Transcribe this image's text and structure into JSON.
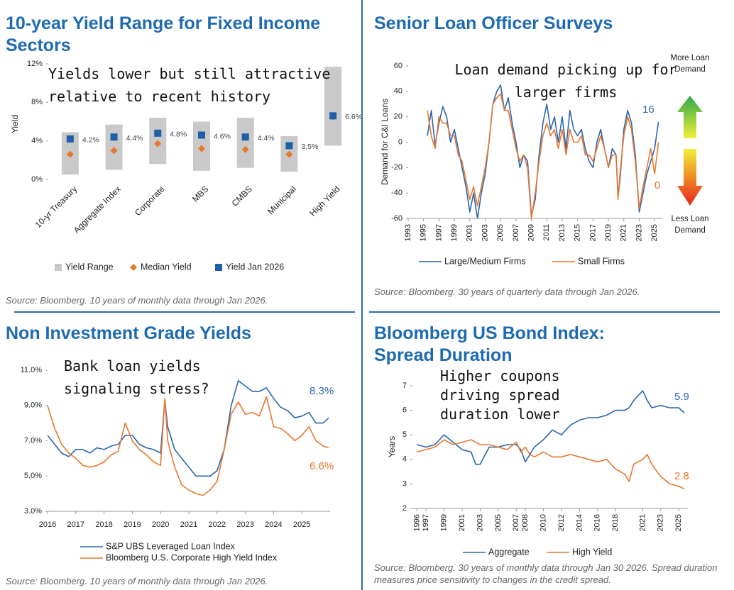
{
  "chart_data": [
    {
      "type": "range",
      "title": "10-year Yield Range for Fixed Income Sectors",
      "annotation": "Yields lower but still attractive relative to recent history",
      "source": "Source: Bloomberg. 10 years of monthly data through Jan 2026.",
      "y_label": "Yield",
      "categories": [
        "10-yr Treasury",
        "Aggregate Index",
        "Corporate",
        "MBS",
        "CMBS",
        "Municipal",
        "High Yield"
      ],
      "series": [
        {
          "name": "Yield Range",
          "color": "#c9c9c9",
          "low": [
            0.5,
            1.0,
            1.6,
            0.9,
            1.2,
            0.8,
            3.5
          ],
          "high": [
            4.9,
            5.7,
            6.4,
            6.0,
            6.4,
            4.5,
            11.7
          ]
        },
        {
          "name": "Median Yield",
          "color": "#e8772e",
          "values": [
            2.6,
            3.0,
            3.7,
            3.2,
            3.1,
            2.6,
            6.5
          ]
        },
        {
          "name": "Yield Jan 2026",
          "color": "#1f5fa8",
          "values": [
            4.2,
            4.4,
            4.8,
            4.6,
            4.4,
            3.5,
            6.6
          ],
          "value_labels": [
            "4.2%",
            "4.4%",
            "4.8%",
            "4.6%",
            "4.4%",
            "3.5%",
            "6.6%"
          ]
        }
      ],
      "ylim": [
        0,
        12
      ],
      "yticks": [
        {
          "value": 0,
          "label": "0%"
        },
        {
          "value": 4,
          "label": "4%"
        },
        {
          "value": 8,
          "label": "8%"
        },
        {
          "value": 12,
          "label": "12%"
        }
      ]
    },
    {
      "type": "line",
      "title": "Senior Loan Officer Surveys",
      "annotation": "Loan demand picking up for larger firms",
      "source": "Source: Bloomberg. 30 years of quarterly data through Jan 2026.",
      "y_label": "Demand for C&I Loans",
      "top_label": "More Loan Demand",
      "bottom_label": "Less Loan Demand",
      "x": [
        1995.5,
        1996,
        1996.5,
        1997,
        1997.5,
        1998,
        1998.5,
        1999,
        1999.5,
        2000,
        2000.5,
        2001,
        2001.5,
        2002,
        2002.5,
        2003,
        2003.5,
        2004,
        2004.5,
        2005,
        2005.5,
        2006,
        2006.5,
        2007,
        2007.5,
        2008,
        2008.5,
        2009,
        2009.5,
        2010,
        2010.5,
        2011,
        2011.5,
        2012,
        2012.5,
        2013,
        2013.5,
        2014,
        2014.5,
        2015,
        2015.5,
        2016,
        2016.5,
        2017,
        2017.5,
        2018,
        2018.5,
        2019,
        2019.5,
        2020,
        2020.25,
        2020.5,
        2021,
        2021.5,
        2022,
        2022.5,
        2023,
        2023.5,
        2024,
        2024.5,
        2025,
        2025.5
      ],
      "series": [
        {
          "name": "Large/Medium Firms",
          "color": "#2a66b0",
          "values": [
            5,
            25,
            -2,
            15,
            28,
            20,
            0,
            10,
            -5,
            -20,
            -35,
            -55,
            -40,
            -60,
            -40,
            -25,
            0,
            30,
            40,
            45,
            25,
            35,
            15,
            0,
            -20,
            -10,
            -15,
            -58,
            -45,
            -10,
            15,
            30,
            10,
            20,
            0,
            20,
            -5,
            25,
            10,
            5,
            10,
            -5,
            -15,
            -20,
            0,
            10,
            -5,
            -20,
            -5,
            -10,
            -43,
            -30,
            10,
            25,
            15,
            -10,
            -55,
            -40,
            -25,
            -15,
            -5,
            16
          ]
        },
        {
          "name": "Small Firms",
          "color": "#e8772e",
          "values": [
            25,
            5,
            -5,
            20,
            15,
            15,
            5,
            5,
            -10,
            -15,
            -30,
            -45,
            -35,
            -50,
            -35,
            -20,
            0,
            30,
            35,
            38,
            25,
            25,
            10,
            -5,
            -15,
            -10,
            -20,
            -60,
            -40,
            -15,
            5,
            15,
            5,
            10,
            -5,
            10,
            -10,
            10,
            0,
            0,
            5,
            -10,
            -10,
            -15,
            -5,
            5,
            -5,
            -20,
            -10,
            -10,
            -45,
            -25,
            5,
            20,
            10,
            -15,
            -52,
            -35,
            -20,
            -5,
            -25,
            0
          ]
        }
      ],
      "xlim": [
        1993,
        2026
      ],
      "xticks": [
        1993,
        1995,
        1997,
        1999,
        2001,
        2003,
        2005,
        2007,
        2009,
        2011,
        2013,
        2015,
        2017,
        2019,
        2021,
        2023,
        2025
      ],
      "ylim": [
        -60,
        60
      ],
      "yticks": [
        -60,
        -40,
        -20,
        0,
        20,
        40,
        60
      ]
    },
    {
      "type": "line",
      "title": "Non Investment Grade Yields",
      "annotation": "Bank loan yields signaling stress?",
      "source": "Source: Bloomberg. 10 years of monthly data through Jan 2026.",
      "x": [
        2016,
        2016.25,
        2016.5,
        2016.75,
        2017,
        2017.25,
        2017.5,
        2017.75,
        2018,
        2018.25,
        2018.5,
        2018.75,
        2019,
        2019.25,
        2019.5,
        2019.75,
        2020,
        2020.15,
        2020.25,
        2020.5,
        2020.75,
        2021,
        2021.25,
        2021.5,
        2021.75,
        2022,
        2022.25,
        2022.5,
        2022.75,
        2023,
        2023.25,
        2023.5,
        2023.75,
        2024,
        2024.25,
        2024.5,
        2024.75,
        2025,
        2025.25,
        2025.5,
        2025.75,
        2025.95
      ],
      "series": [
        {
          "name": "S&P UBS Leveraged Loan Index",
          "color": "#2a66b0",
          "values": [
            7.3,
            6.8,
            6.3,
            6.1,
            6.5,
            6.5,
            6.3,
            6.6,
            6.5,
            6.7,
            6.8,
            7.3,
            7.3,
            6.8,
            6.6,
            6.5,
            6.3,
            9.3,
            7.8,
            6.5,
            6.0,
            5.5,
            5.0,
            5.0,
            5.0,
            5.3,
            6.5,
            9.0,
            10.4,
            10.1,
            9.8,
            9.8,
            10.0,
            9.4,
            8.9,
            8.7,
            8.3,
            8.4,
            8.6,
            8.0,
            8.0,
            8.3
          ],
          "value_labels": [
            null,
            null,
            null,
            null,
            null,
            null,
            null,
            null,
            null,
            null,
            null,
            null,
            null,
            null,
            null,
            null,
            null,
            null,
            null,
            null,
            null,
            null,
            null,
            null,
            null,
            null,
            null,
            null,
            null,
            null,
            null,
            null,
            null,
            null,
            null,
            null,
            null,
            null,
            null,
            null,
            null,
            "8.3%"
          ]
        },
        {
          "name": "Bloomberg U.S. Corporate High Yield Index",
          "color": "#e8772e",
          "values": [
            9.0,
            7.7,
            6.8,
            6.3,
            6.0,
            5.6,
            5.5,
            5.6,
            5.8,
            6.2,
            6.4,
            8.0,
            7.0,
            6.5,
            6.2,
            5.8,
            5.6,
            9.4,
            7.0,
            5.5,
            4.5,
            4.2,
            4.0,
            3.9,
            4.2,
            4.7,
            6.5,
            8.5,
            9.2,
            8.5,
            8.6,
            8.4,
            9.5,
            7.8,
            7.7,
            7.4,
            7.0,
            7.3,
            7.8,
            7.0,
            6.7,
            6.6
          ],
          "value_labels": [
            null,
            null,
            null,
            null,
            null,
            null,
            null,
            null,
            null,
            null,
            null,
            null,
            null,
            null,
            null,
            null,
            null,
            null,
            null,
            null,
            null,
            null,
            null,
            null,
            null,
            null,
            null,
            null,
            null,
            null,
            null,
            null,
            null,
            null,
            null,
            null,
            null,
            null,
            null,
            null,
            null,
            "6.6%"
          ]
        }
      ],
      "xlim": [
        2016,
        2026
      ],
      "xticks": [
        2016,
        2017,
        2018,
        2019,
        2020,
        2021,
        2022,
        2023,
        2024,
        2025
      ],
      "ylim": [
        3,
        11
      ],
      "yticks": [
        {
          "value": 3,
          "label": "3.0%"
        },
        {
          "value": 5,
          "label": "5.0%"
        },
        {
          "value": 7,
          "label": "7.0%"
        },
        {
          "value": 9,
          "label": "9.0%"
        },
        {
          "value": 11,
          "label": "11.0%"
        }
      ]
    },
    {
      "type": "line",
      "title": "Bloomberg US Bond Index: Spread Duration",
      "annotation": "Higher coupons driving spread duration lower",
      "source": "Source: Bloomberg. 30 years of monthly data through Jan 30 2026. Spread duration measures price sensitivity to changes in the credit spread.",
      "y_label": "Years",
      "x": [
        1996,
        1997,
        1998,
        1999,
        2000,
        2001,
        2002,
        2002.5,
        2003,
        2004,
        2005,
        2006,
        2007,
        2007.5,
        2008,
        2008.5,
        2009,
        2010,
        2011,
        2012,
        2013,
        2014,
        2015,
        2016,
        2017,
        2018,
        2019,
        2019.5,
        2020,
        2021,
        2021.5,
        2022,
        2023,
        2024,
        2025,
        2025.6
      ],
      "series": [
        {
          "name": "Aggregate",
          "color": "#2a66b0",
          "values": [
            4.6,
            4.5,
            4.6,
            5.0,
            4.7,
            4.4,
            4.3,
            3.8,
            3.8,
            4.5,
            4.5,
            4.6,
            4.6,
            4.4,
            3.9,
            4.2,
            4.5,
            4.8,
            5.2,
            5.0,
            5.4,
            5.6,
            5.7,
            5.7,
            5.8,
            6.0,
            6.0,
            6.1,
            6.4,
            6.8,
            6.4,
            6.1,
            6.2,
            6.1,
            6.1,
            5.9
          ]
        },
        {
          "name": "High Yield",
          "color": "#e8772e",
          "values": [
            4.3,
            4.4,
            4.5,
            4.8,
            4.6,
            4.7,
            4.8,
            4.7,
            4.6,
            4.6,
            4.5,
            4.4,
            4.7,
            4.3,
            4.5,
            4.2,
            4.1,
            4.3,
            4.1,
            4.1,
            4.2,
            4.1,
            4.0,
            3.9,
            4.0,
            3.6,
            3.4,
            3.1,
            3.8,
            4.0,
            4.2,
            3.8,
            3.3,
            3.0,
            2.9,
            2.8
          ]
        }
      ],
      "xlim": [
        1995.5,
        2026
      ],
      "xticks": [
        1996,
        1997,
        1999,
        2001,
        2003,
        2005,
        2007,
        2008,
        2010,
        2012,
        2014,
        2016,
        2018,
        2021,
        2023,
        2025
      ],
      "ylim": [
        2,
        7
      ],
      "yticks": [
        2,
        3,
        4,
        5,
        6,
        7
      ]
    }
  ]
}
